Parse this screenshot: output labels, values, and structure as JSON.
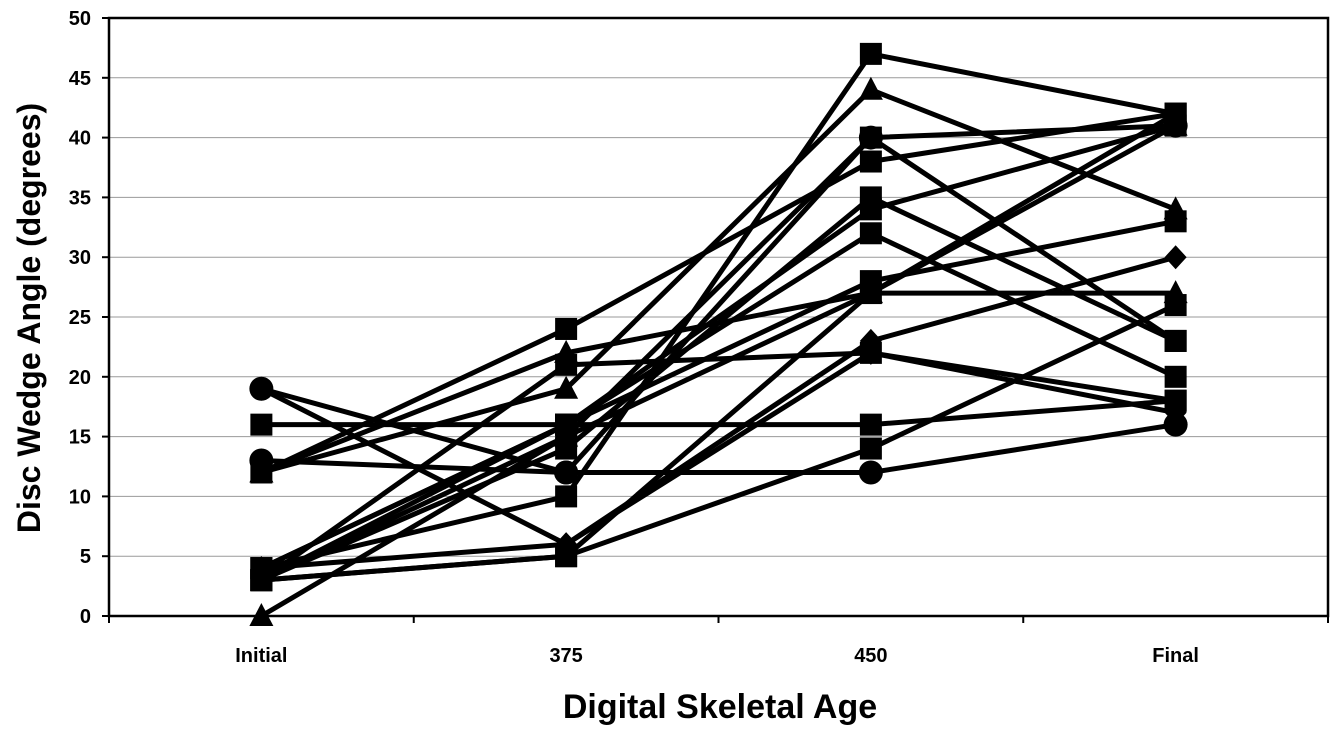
{
  "chart_data": {
    "type": "line",
    "title": "",
    "xlabel": "Digital Skeletal Age",
    "ylabel": "Disc Wedge Angle (degrees)",
    "categories": [
      "Initial",
      "375",
      "450",
      "Final"
    ],
    "ylim": [
      0,
      50
    ],
    "yticks": [
      0,
      5,
      10,
      15,
      20,
      25,
      30,
      35,
      40,
      45,
      50
    ],
    "grid": "horizontal",
    "legend": "none",
    "series": [
      {
        "marker": "square",
        "values": [
          16,
          16,
          16,
          18
        ]
      },
      {
        "marker": "circle",
        "values": [
          19,
          12,
          12,
          16
        ]
      },
      {
        "marker": "square",
        "values": [
          4,
          10,
          47,
          42
        ]
      },
      {
        "marker": "square",
        "values": [
          3,
          5,
          14,
          26
        ]
      },
      {
        "marker": "diamond",
        "values": [
          19,
          6,
          22,
          17
        ]
      },
      {
        "marker": "triangle",
        "values": [
          12,
          19,
          44,
          34
        ]
      },
      {
        "marker": "square",
        "values": [
          12,
          24,
          38,
          42
        ]
      },
      {
        "marker": "square",
        "values": [
          3,
          16,
          28,
          33
        ]
      },
      {
        "marker": "circle",
        "values": [
          13,
          12,
          40,
          41
        ]
      },
      {
        "marker": "triangle",
        "values": [
          0,
          15,
          27,
          41
        ]
      },
      {
        "marker": "square",
        "values": [
          3,
          14,
          35,
          23
        ]
      },
      {
        "marker": "triangle",
        "values": [
          12,
          22,
          27,
          27
        ]
      },
      {
        "marker": "square",
        "values": [
          4,
          16,
          32,
          20
        ]
      },
      {
        "marker": "square",
        "values": [
          3,
          5,
          27,
          42
        ]
      },
      {
        "marker": "diamond",
        "values": [
          4,
          6,
          23,
          30
        ]
      },
      {
        "marker": "square",
        "values": [
          3,
          15,
          40,
          23
        ]
      },
      {
        "marker": "square",
        "values": [
          3,
          21,
          22,
          18
        ]
      },
      {
        "marker": "square",
        "values": [
          4,
          16,
          34,
          41
        ]
      }
    ]
  }
}
